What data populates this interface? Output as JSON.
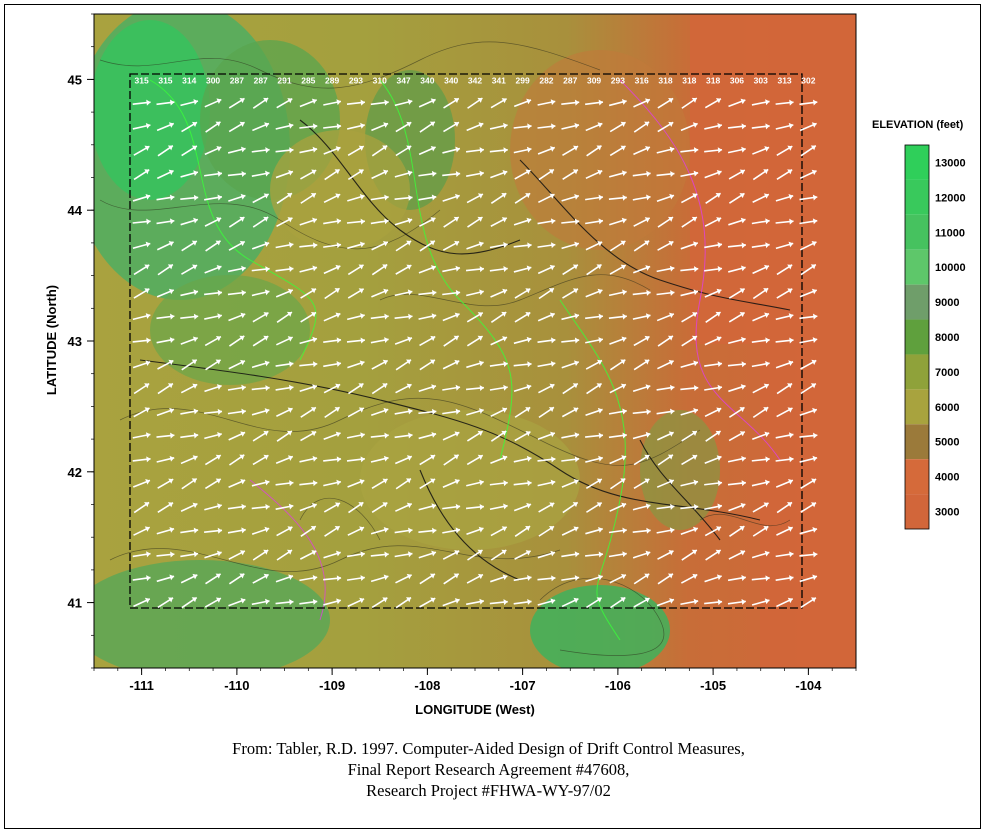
{
  "map": {
    "x_axis_label": "LONGITUDE (West)",
    "y_axis_label": "LATITUDE (North)",
    "x_ticks": [
      "-111",
      "-110",
      "-109",
      "-108",
      "-107",
      "-106",
      "-105",
      "-104"
    ],
    "y_ticks": [
      "45",
      "44",
      "43",
      "42",
      "41"
    ],
    "lon_range": [
      -111.5,
      -103.5
    ],
    "lat_range": [
      40.5,
      45.5
    ],
    "grid_lon_range": [
      -111.0,
      -104.0
    ],
    "grid_lat_range": [
      41.0,
      45.0
    ],
    "background_colors": {
      "low_plains": "#d2663a",
      "mid": "#a9a23f",
      "high": "#3fae5e"
    },
    "wind_arrows": {
      "color": "#ffffff",
      "columns": 29,
      "rows": 23,
      "direction_labels_first_row": [
        "315",
        "315",
        "314",
        "300",
        "287",
        "287",
        "291",
        "285",
        "289",
        "293",
        "310",
        "347",
        "340",
        "340",
        "342",
        "341",
        "299",
        "282",
        "287",
        "309",
        "293",
        "316",
        "318",
        "318",
        "318",
        "306",
        "303",
        "313",
        "302"
      ]
    }
  },
  "legend": {
    "title": "ELEVATION (feet)",
    "levels": [
      {
        "label": "13000",
        "color": "#2fcf5a"
      },
      {
        "label": "12000",
        "color": "#39c95c"
      },
      {
        "label": "11000",
        "color": "#46c25f"
      },
      {
        "label": "10000",
        "color": "#5ec76a"
      },
      {
        "label": "9000",
        "color": "#6f9e6a"
      },
      {
        "label": "8000",
        "color": "#5fa03d"
      },
      {
        "label": "7000",
        "color": "#8fa23a"
      },
      {
        "label": "6000",
        "color": "#a8a33e"
      },
      {
        "label": "5000",
        "color": "#9b7a3a"
      },
      {
        "label": "4000",
        "color": "#d56a3a"
      },
      {
        "label": "3000",
        "color": "#d2663a"
      }
    ]
  },
  "caption": {
    "line1": "From: Tabler, R.D. 1997.  Computer-Aided Design of Drift Control Measures,",
    "line2": "Final Report Research Agreement #47608,",
    "line3": "Research Project #FHWA-WY-97/02"
  }
}
